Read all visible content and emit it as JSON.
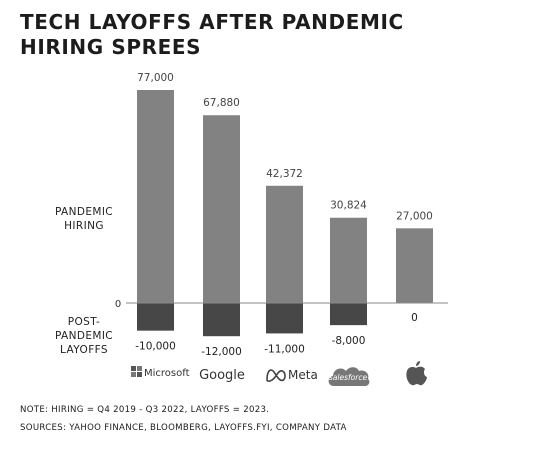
{
  "title_lines": [
    "Tech Layoffs After Pandemic",
    "Hiring Sprees"
  ],
  "chart_data": {
    "type": "bar",
    "categories": [
      "Microsoft",
      "Google",
      "Meta",
      "salesforce",
      "Apple"
    ],
    "series": [
      {
        "name": "Pandemic Hiring",
        "values": [
          77000,
          67880,
          42372,
          30824,
          27000
        ],
        "labels": [
          "77,000",
          "67,880",
          "42,372",
          "30,824",
          "27,000"
        ]
      },
      {
        "name": "Post-Pandemic Layoffs",
        "values": [
          -10000,
          -12000,
          -11000,
          -8000,
          0
        ],
        "labels": [
          "-10,000",
          "-12,000",
          "-11,000",
          "-8,000",
          "0"
        ]
      }
    ],
    "zero_label": "0",
    "row_labels": {
      "hiring": [
        "PANDEMIC",
        "HIRING"
      ],
      "layoffs": [
        "POST-",
        "PANDEMIC",
        "LAYOFFS"
      ]
    },
    "company_logos": [
      {
        "name": "Microsoft",
        "text": "Microsoft",
        "icon": "microsoft-logo-icon"
      },
      {
        "name": "Google",
        "text": "Google",
        "icon": "google-logo-icon"
      },
      {
        "name": "Meta",
        "text": "Meta",
        "icon": "meta-logo-icon"
      },
      {
        "name": "Salesforce",
        "text": "salesforce",
        "icon": "salesforce-logo-icon"
      },
      {
        "name": "Apple",
        "text": "",
        "icon": "apple-logo-icon"
      }
    ],
    "colors": {
      "hiring_bar": "#828282",
      "layoff_bar": "#474747",
      "baseline": "#8a8a8a"
    }
  },
  "notes": {
    "line1": "Note: Hiring = Q4 2019 - Q3 2022, Layoffs = 2023.",
    "line2": "Sources: Yahoo Finance, Bloomberg, Layoffs.fyi, company data"
  }
}
